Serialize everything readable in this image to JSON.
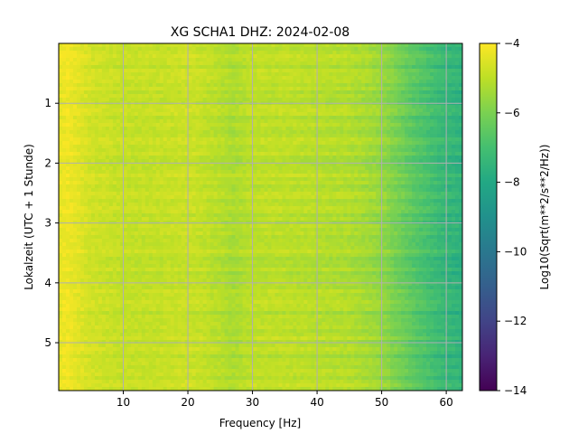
{
  "chart_data": {
    "type": "heatmap",
    "title": "XG SCHA1  DHZ: 2024-02-08",
    "xlabel": "Frequency [Hz]",
    "ylabel": "Lokalzeit (UTC + 1 Stunde)",
    "xlim": [
      0,
      62.5
    ],
    "ylim": [
      0,
      5.8
    ],
    "y_inverted": true,
    "xticks": [
      10,
      20,
      30,
      40,
      50,
      60
    ],
    "xtick_labels": [
      "10",
      "20",
      "30",
      "40",
      "50",
      "60"
    ],
    "yticks": [
      1,
      2,
      3,
      4,
      5
    ],
    "ytick_labels": [
      "1",
      "2",
      "3",
      "4",
      "5"
    ],
    "grid": true,
    "colormap": "viridis",
    "colorbar": {
      "label": "Log10(Sqrt(m**2/s**2/Hz))",
      "range": [
        -14,
        -4
      ],
      "ticks": [
        -4,
        -6,
        -8,
        -10,
        -12,
        -14
      ],
      "tick_labels": [
        "−4",
        "−6",
        "−8",
        "−10",
        "−12",
        "−14"
      ]
    },
    "profile": {
      "freq_hz": [
        0,
        1,
        2,
        5,
        10,
        15,
        20,
        22,
        25,
        27,
        30,
        35,
        40,
        45,
        48,
        50,
        52,
        55,
        58,
        60,
        62.5
      ],
      "log10_psd": [
        -4.4,
        -4.2,
        -4.3,
        -4.7,
        -4.9,
        -4.9,
        -4.8,
        -4.9,
        -5.1,
        -5.3,
        -5.0,
        -5.0,
        -5.1,
        -5.2,
        -5.4,
        -5.6,
        -6.0,
        -6.6,
        -7.1,
        -7.4,
        -7.6
      ]
    }
  }
}
